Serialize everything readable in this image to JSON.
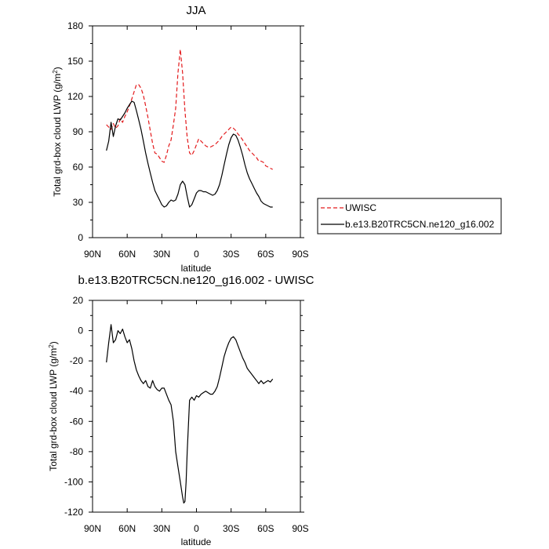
{
  "chart_data": [
    {
      "type": "line",
      "title": "JJA",
      "xlabel": "latitude",
      "ylabel": "Total grd-box cloud LWP (g/m",
      "ylabel_sup": "2",
      "ylabel_tail": ")",
      "xlim": [
        90,
        -90
      ],
      "ylim": [
        0,
        180
      ],
      "x_ticks": [
        90,
        60,
        30,
        0,
        -30,
        -60,
        -90
      ],
      "x_tick_labels": [
        "90N",
        "60N",
        "30N",
        "0",
        "30S",
        "60S",
        "90S"
      ],
      "y_ticks": [
        0,
        30,
        60,
        90,
        120,
        150,
        180
      ],
      "y_tick_labels": [
        "0",
        "30",
        "60",
        "90",
        "120",
        "150",
        "180"
      ],
      "grid": false,
      "legend_position": "right",
      "series": [
        {
          "name": "UWISC",
          "color": "#e31a1c",
          "dash": "dashed",
          "x": [
            78,
            76,
            74,
            72,
            70,
            68,
            66,
            64,
            62,
            60,
            58,
            56,
            54,
            52,
            50,
            48,
            46,
            44,
            42,
            40,
            38,
            36,
            34,
            32,
            30,
            28,
            26,
            24,
            22,
            20,
            18,
            16,
            14,
            12,
            10,
            8,
            6,
            4,
            2,
            0,
            -2,
            -4,
            -6,
            -8,
            -10,
            -12,
            -14,
            -16,
            -18,
            -20,
            -22,
            -24,
            -26,
            -28,
            -30,
            -32,
            -34,
            -36,
            -38,
            -40,
            -42,
            -44,
            -46,
            -48,
            -50,
            -52,
            -54,
            -56,
            -58,
            -60,
            -62,
            -64,
            -66
          ],
          "values": [
            96,
            94,
            92,
            97,
            93,
            95,
            101,
            98,
            103,
            107,
            112,
            118,
            124,
            130,
            130,
            127,
            121,
            112,
            102,
            91,
            80,
            72,
            71,
            68,
            65,
            64,
            70,
            78,
            83,
            96,
            110,
            140,
            160,
            140,
            108,
            85,
            72,
            70,
            74,
            79,
            84,
            82,
            80,
            78,
            77,
            77,
            78,
            79,
            81,
            83,
            86,
            88,
            90,
            92,
            94,
            93,
            91,
            88,
            86,
            83,
            80,
            77,
            74,
            72,
            70,
            68,
            65,
            65,
            64,
            61,
            60,
            59,
            58
          ]
        },
        {
          "name": "b.e13.B20TRC5CN.ne120_g16.002",
          "color": "#000000",
          "dash": "solid",
          "x": [
            78,
            76,
            74,
            72,
            70,
            68,
            66,
            64,
            62,
            60,
            58,
            56,
            54,
            52,
            50,
            48,
            46,
            44,
            42,
            40,
            38,
            36,
            34,
            32,
            30,
            28,
            26,
            24,
            22,
            20,
            18,
            16,
            14,
            12,
            10,
            8,
            6,
            4,
            2,
            0,
            -2,
            -4,
            -6,
            -8,
            -10,
            -12,
            -14,
            -16,
            -18,
            -20,
            -22,
            -24,
            -26,
            -28,
            -30,
            -32,
            -34,
            -36,
            -38,
            -40,
            -42,
            -44,
            -46,
            -48,
            -50,
            -52,
            -54,
            -56,
            -58,
            -60,
            -62,
            -64,
            -66
          ],
          "values": [
            74,
            82,
            98,
            86,
            95,
            101,
            100,
            103,
            106,
            110,
            113,
            116,
            115,
            108,
            100,
            92,
            82,
            72,
            63,
            55,
            47,
            40,
            36,
            32,
            28,
            26,
            27,
            30,
            32,
            31,
            32,
            37,
            45,
            48,
            45,
            35,
            26,
            28,
            33,
            38,
            40,
            40,
            39,
            39,
            38,
            37,
            36,
            37,
            40,
            45,
            53,
            62,
            71,
            79,
            85,
            88,
            87,
            83,
            77,
            70,
            62,
            55,
            50,
            46,
            42,
            38,
            35,
            31,
            29,
            28,
            27,
            26,
            26
          ]
        }
      ]
    },
    {
      "type": "line",
      "title": "b.e13.B20TRC5CN.ne120_g16.002 - UWISC",
      "xlabel": "latitude",
      "ylabel": "Total grd-box cloud LWP (g/m",
      "ylabel_sup": "2",
      "ylabel_tail": ")",
      "xlim": [
        90,
        -90
      ],
      "ylim": [
        -120,
        20
      ],
      "x_ticks": [
        90,
        60,
        30,
        0,
        -30,
        -60,
        -90
      ],
      "x_tick_labels": [
        "90N",
        "60N",
        "30N",
        "0",
        "30S",
        "60S",
        "90S"
      ],
      "y_ticks": [
        -120,
        -100,
        -80,
        -60,
        -40,
        -20,
        0,
        20
      ],
      "y_tick_labels": [
        "-120",
        "-100",
        "-80",
        "-60",
        "-40",
        "-20",
        "0",
        "20"
      ],
      "grid": false,
      "series": [
        {
          "color": "#000000",
          "dash": "solid",
          "x": [
            78,
            76,
            74,
            72,
            70,
            68,
            66,
            64,
            62,
            60,
            58,
            56,
            54,
            52,
            50,
            48,
            46,
            44,
            42,
            40,
            38,
            36,
            34,
            32,
            30,
            28,
            26,
            24,
            22,
            20,
            18,
            16,
            14,
            12,
            11,
            10,
            9,
            8,
            6,
            4,
            2,
            0,
            -2,
            -4,
            -6,
            -8,
            -10,
            -12,
            -14,
            -16,
            -18,
            -20,
            -22,
            -24,
            -26,
            -28,
            -30,
            -32,
            -34,
            -36,
            -38,
            -40,
            -42,
            -44,
            -46,
            -48,
            -50,
            -52,
            -54,
            -56,
            -58,
            -60,
            -62,
            -64,
            -66
          ],
          "values": [
            -21,
            -8,
            4,
            -8,
            -6,
            0,
            -2,
            1,
            -4,
            -8,
            -6,
            -12,
            -20,
            -26,
            -30,
            -33,
            -35,
            -33,
            -37,
            -38,
            -33,
            -37,
            -39,
            -40,
            -38,
            -38,
            -42,
            -46,
            -49,
            -60,
            -80,
            -90,
            -100,
            -110,
            -114,
            -113,
            -100,
            -80,
            -46,
            -44,
            -46,
            -43,
            -44,
            -42,
            -41,
            -40,
            -41,
            -42,
            -42,
            -40,
            -37,
            -31,
            -24,
            -17,
            -12,
            -8,
            -5,
            -4,
            -6,
            -10,
            -14,
            -18,
            -21,
            -25,
            -27,
            -29,
            -31,
            -33,
            -35,
            -33,
            -35,
            -34,
            -33,
            -34,
            -32
          ]
        }
      ]
    }
  ]
}
